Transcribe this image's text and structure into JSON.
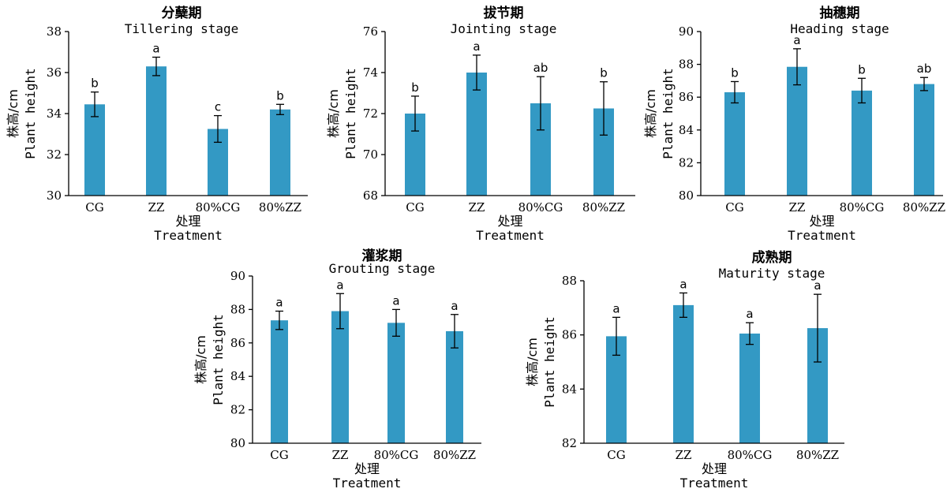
{
  "style": {
    "bar_color": "#3399c4",
    "axis_color": "#000000"
  },
  "chart_data": [
    {
      "type": "bar",
      "title_cn": "分蘖期",
      "title_en": "Tillering stage",
      "ylabel_cn": "株高/cm",
      "ylabel_en": "Plant height",
      "xlabel_cn": "处理",
      "xlabel_en": "Treatment",
      "categories": [
        "CG",
        "ZZ",
        "80%CG",
        "80%ZZ"
      ],
      "values": [
        34.45,
        36.3,
        33.25,
        34.2
      ],
      "errors": [
        0.6,
        0.45,
        0.65,
        0.25
      ],
      "letters": [
        "b",
        "a",
        "c",
        "b"
      ],
      "ylim": [
        30,
        38
      ],
      "yticks": [
        30,
        32,
        34,
        36,
        38
      ]
    },
    {
      "type": "bar",
      "title_cn": "拔节期",
      "title_en": "Jointing stage",
      "ylabel_cn": "株高/cm",
      "ylabel_en": "Plant height",
      "xlabel_cn": "处理",
      "xlabel_en": "Treatment",
      "categories": [
        "CG",
        "ZZ",
        "80%CG",
        "80%ZZ"
      ],
      "values": [
        72.0,
        74.0,
        72.5,
        72.25
      ],
      "errors": [
        0.85,
        0.85,
        1.3,
        1.3
      ],
      "letters": [
        "b",
        "a",
        "ab",
        "b"
      ],
      "ylim": [
        68,
        76
      ],
      "yticks": [
        68,
        70,
        72,
        74,
        76
      ]
    },
    {
      "type": "bar",
      "title_cn": "抽穗期",
      "title_en": "Heading stage",
      "ylabel_cn": "株高/cm",
      "ylabel_en": "Plant height",
      "xlabel_cn": "处理",
      "xlabel_en": "Treatment",
      "categories": [
        "CG",
        "ZZ",
        "80%CG",
        "80%ZZ"
      ],
      "values": [
        86.3,
        87.85,
        86.4,
        86.8
      ],
      "errors": [
        0.65,
        1.1,
        0.75,
        0.4
      ],
      "letters": [
        "b",
        "a",
        "b",
        "ab"
      ],
      "ylim": [
        80,
        90
      ],
      "yticks": [
        80,
        82,
        84,
        86,
        88,
        90
      ]
    },
    {
      "type": "bar",
      "title_cn": "灌浆期",
      "title_en": "Grouting stage",
      "ylabel_cn": "株高/cm",
      "ylabel_en": "Plant height",
      "xlabel_cn": "处理",
      "xlabel_en": "Treatment",
      "categories": [
        "CG",
        "ZZ",
        "80%CG",
        "80%ZZ"
      ],
      "values": [
        87.35,
        87.9,
        87.2,
        86.7
      ],
      "errors": [
        0.55,
        1.05,
        0.8,
        1.0
      ],
      "letters": [
        "a",
        "a",
        "a",
        "a"
      ],
      "ylim": [
        80,
        90
      ],
      "yticks": [
        80,
        82,
        84,
        86,
        88,
        90
      ]
    },
    {
      "type": "bar",
      "title_cn": "成熟期",
      "title_en": "Maturity stage",
      "ylabel_cn": "株高/cm",
      "ylabel_en": "Plant height",
      "xlabel_cn": "处理",
      "xlabel_en": "Treatment",
      "categories": [
        "CG",
        "ZZ",
        "80%CG",
        "80%ZZ"
      ],
      "values": [
        85.95,
        87.1,
        86.05,
        86.25
      ],
      "errors": [
        0.7,
        0.45,
        0.4,
        1.25
      ],
      "letters": [
        "a",
        "a",
        "a",
        "a"
      ],
      "ylim": [
        82,
        88
      ],
      "yticks": [
        82,
        84,
        86,
        88
      ]
    }
  ]
}
